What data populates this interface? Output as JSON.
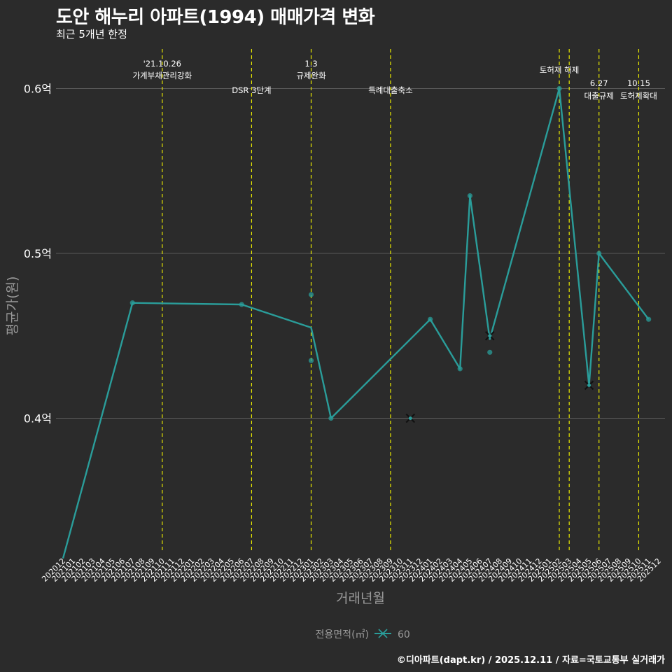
{
  "header": {
    "title": "도안 해누리 아파트(1994) 매매가격 변화",
    "subtitle": "최근 5개년 한정"
  },
  "footer": {
    "credit": "©디아파트(dapt.kr) / 2025.12.11 / 자료=국토교통부 실거래가"
  },
  "colors": {
    "background": "#2b2b2b",
    "line": "#2a9d9a",
    "vline": "#e8e800",
    "grid": "#5a5a5a",
    "text": "#ffffff",
    "muted": "#9a9a9a"
  },
  "chart_data": {
    "type": "line",
    "xlabel": "거래년월",
    "ylabel": "평균가(원)",
    "ylim": [
      0.3,
      0.63
    ],
    "y_ticks": [
      {
        "value": 0.4,
        "label": "0.4억"
      },
      {
        "value": 0.5,
        "label": "0.5억"
      },
      {
        "value": 0.6,
        "label": "0.6억"
      }
    ],
    "categories": [
      "202012",
      "202101",
      "202102",
      "202103",
      "202104",
      "202105",
      "202106",
      "202107",
      "202108",
      "202109",
      "202110",
      "202111",
      "202112",
      "202201",
      "202202",
      "202203",
      "202204",
      "202205",
      "202206",
      "202207",
      "202208",
      "202209",
      "202210",
      "202211",
      "202212",
      "202301",
      "202302",
      "202303",
      "202304",
      "202305",
      "202306",
      "202307",
      "202308",
      "202309",
      "202310",
      "202311",
      "202312",
      "202401",
      "202402",
      "202403",
      "202404",
      "202405",
      "202406",
      "202407",
      "202408",
      "202409",
      "202410",
      "202411",
      "202412",
      "202501",
      "202502",
      "202503",
      "202504",
      "202505",
      "202506",
      "202507",
      "202508",
      "202509",
      "202510",
      "202511",
      "202512"
    ],
    "series": [
      {
        "name": "60",
        "line_points": [
          {
            "x": "202012",
            "y": 0.315
          },
          {
            "x": "202107",
            "y": 0.47
          },
          {
            "x": "202206",
            "y": 0.469
          },
          {
            "x": "202301",
            "y": 0.455
          },
          {
            "x": "202303",
            "y": 0.4
          },
          {
            "x": "202401",
            "y": 0.46
          },
          {
            "x": "202404",
            "y": 0.43
          },
          {
            "x": "202405",
            "y": 0.535
          },
          {
            "x": "202407",
            "y": 0.448
          },
          {
            "x": "202502",
            "y": 0.6
          },
          {
            "x": "202505",
            "y": 0.42
          },
          {
            "x": "202506",
            "y": 0.5
          },
          {
            "x": "202511",
            "y": 0.46
          }
        ],
        "points": [
          {
            "x": "202107",
            "y": 0.47
          },
          {
            "x": "202206",
            "y": 0.469
          },
          {
            "x": "202301",
            "y": 0.475
          },
          {
            "x": "202301",
            "y": 0.435
          },
          {
            "x": "202303",
            "y": 0.4
          },
          {
            "x": "202401",
            "y": 0.46
          },
          {
            "x": "202404",
            "y": 0.43
          },
          {
            "x": "202405",
            "y": 0.535
          },
          {
            "x": "202407",
            "y": 0.44
          },
          {
            "x": "202502",
            "y": 0.6
          },
          {
            "x": "202506",
            "y": 0.5
          },
          {
            "x": "202511",
            "y": 0.46
          }
        ],
        "cancelled": [
          {
            "x": "202311",
            "y": 0.4
          },
          {
            "x": "202407",
            "y": 0.45
          },
          {
            "x": "202505",
            "y": 0.42
          }
        ]
      }
    ],
    "annotations": [
      {
        "x": "202110",
        "lines": [
          "'21.10.26",
          "가계부채관리강화"
        ],
        "level": "high"
      },
      {
        "x": "202207",
        "lines": [
          "DSR 3단계"
        ],
        "level": "low"
      },
      {
        "x": "202301",
        "lines": [
          "1.3",
          "규제완화"
        ],
        "level": "high"
      },
      {
        "x": "202309",
        "lines": [
          "특례대출축소"
        ],
        "level": "low"
      },
      {
        "x": "202502",
        "lines": [
          "토허제 해제"
        ],
        "level": "top"
      },
      {
        "x": "202503",
        "lines": [],
        "level": "none"
      },
      {
        "x": "202506",
        "lines": [
          "6.27",
          "대출규제"
        ],
        "level": "low2"
      },
      {
        "x": "202510",
        "lines": [
          "10.15",
          "토허제확대"
        ],
        "level": "low2"
      }
    ],
    "legend": {
      "title": "전용면적(㎡)",
      "label": "60",
      "position": "bottom"
    }
  }
}
